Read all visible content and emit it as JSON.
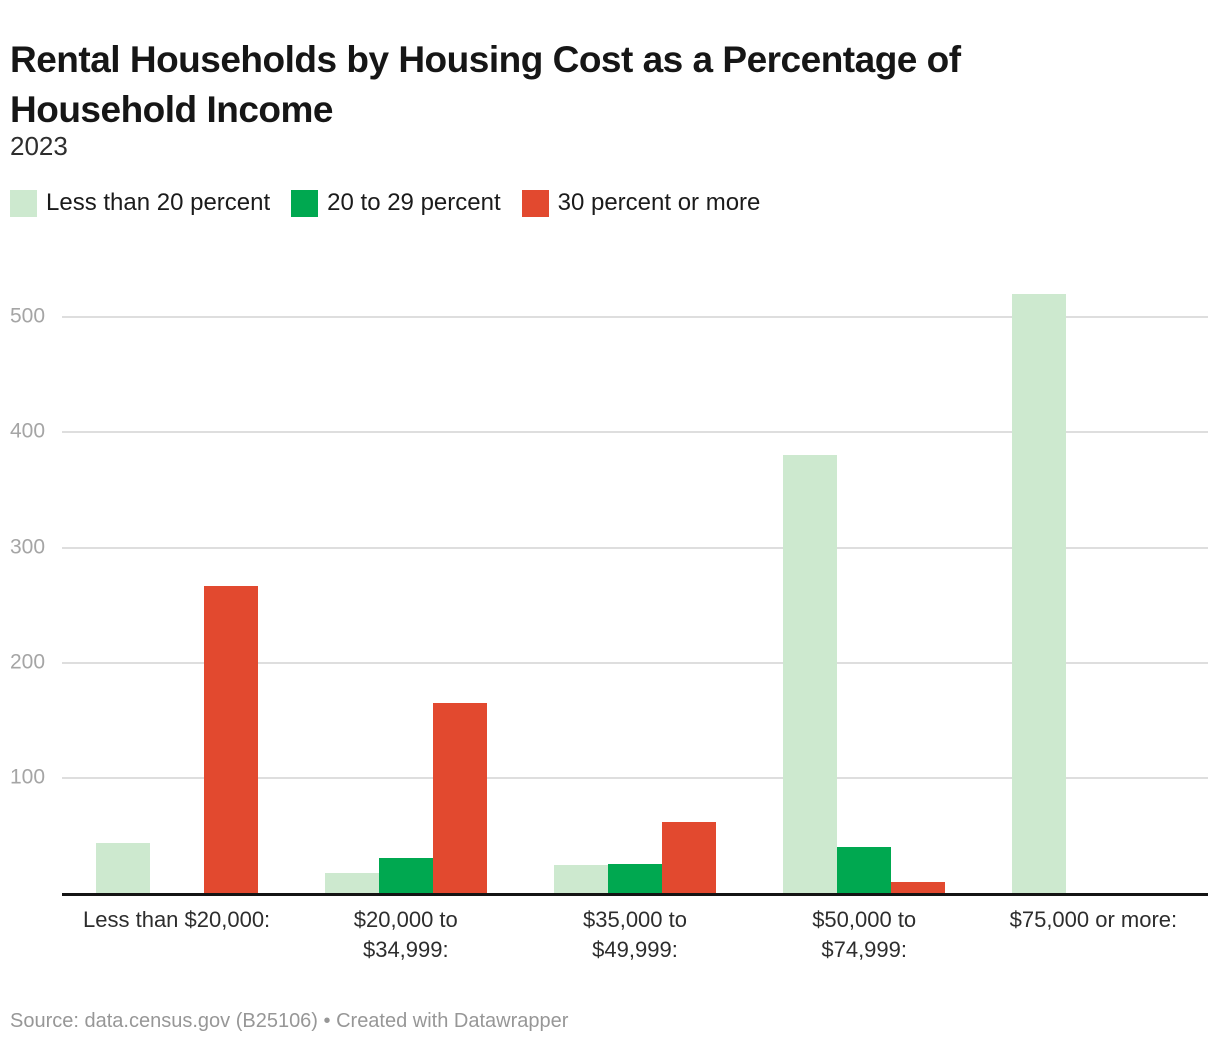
{
  "header": {
    "title": "Rental Households by Housing Cost as a Percentage of Household Income",
    "subtitle": "2023"
  },
  "legend": {
    "items": [
      {
        "label": "Less than 20 percent",
        "color": "#cde9cf"
      },
      {
        "label": "20 to 29 percent",
        "color": "#00a850"
      },
      {
        "label": "30 percent or more",
        "color": "#e2492f"
      }
    ]
  },
  "chart_data": {
    "type": "bar",
    "title": "Rental Households by Housing Cost as a Percentage of Household Income",
    "subtitle": "2023",
    "categories": [
      "Less than $20,000:",
      "$20,000 to\n$34,999:",
      "$35,000 to\n$49,999:",
      "$50,000 to\n$74,999:",
      "$75,000 or more:"
    ],
    "series": [
      {
        "name": "Less than 20 percent",
        "color": "#cde9cf",
        "values": [
          44,
          18,
          25,
          380,
          520
        ]
      },
      {
        "name": "20 to 29 percent",
        "color": "#00a850",
        "values": [
          0,
          31,
          26,
          40,
          0
        ]
      },
      {
        "name": "30 percent or more",
        "color": "#e2492f",
        "values": [
          267,
          165,
          62,
          10,
          0
        ]
      }
    ],
    "xlabel": "",
    "ylabel": "",
    "ylim": [
      0,
      540
    ],
    "yticks": [
      100,
      200,
      300,
      400,
      500
    ],
    "grid": true,
    "legend_position": "top",
    "bar_color_note": "grouped columns, light-green / green / red"
  },
  "footer": {
    "source": "Source: data.census.gov (B25106) • Created with Datawrapper"
  },
  "colors": {
    "background": "#ffffff",
    "gridline": "#dedede",
    "axis_line": "#141414",
    "axis_tick_text": "#a5a5a5",
    "category_text": "#2d2d2d",
    "title_text": "#161616",
    "footer_text": "#979797"
  }
}
